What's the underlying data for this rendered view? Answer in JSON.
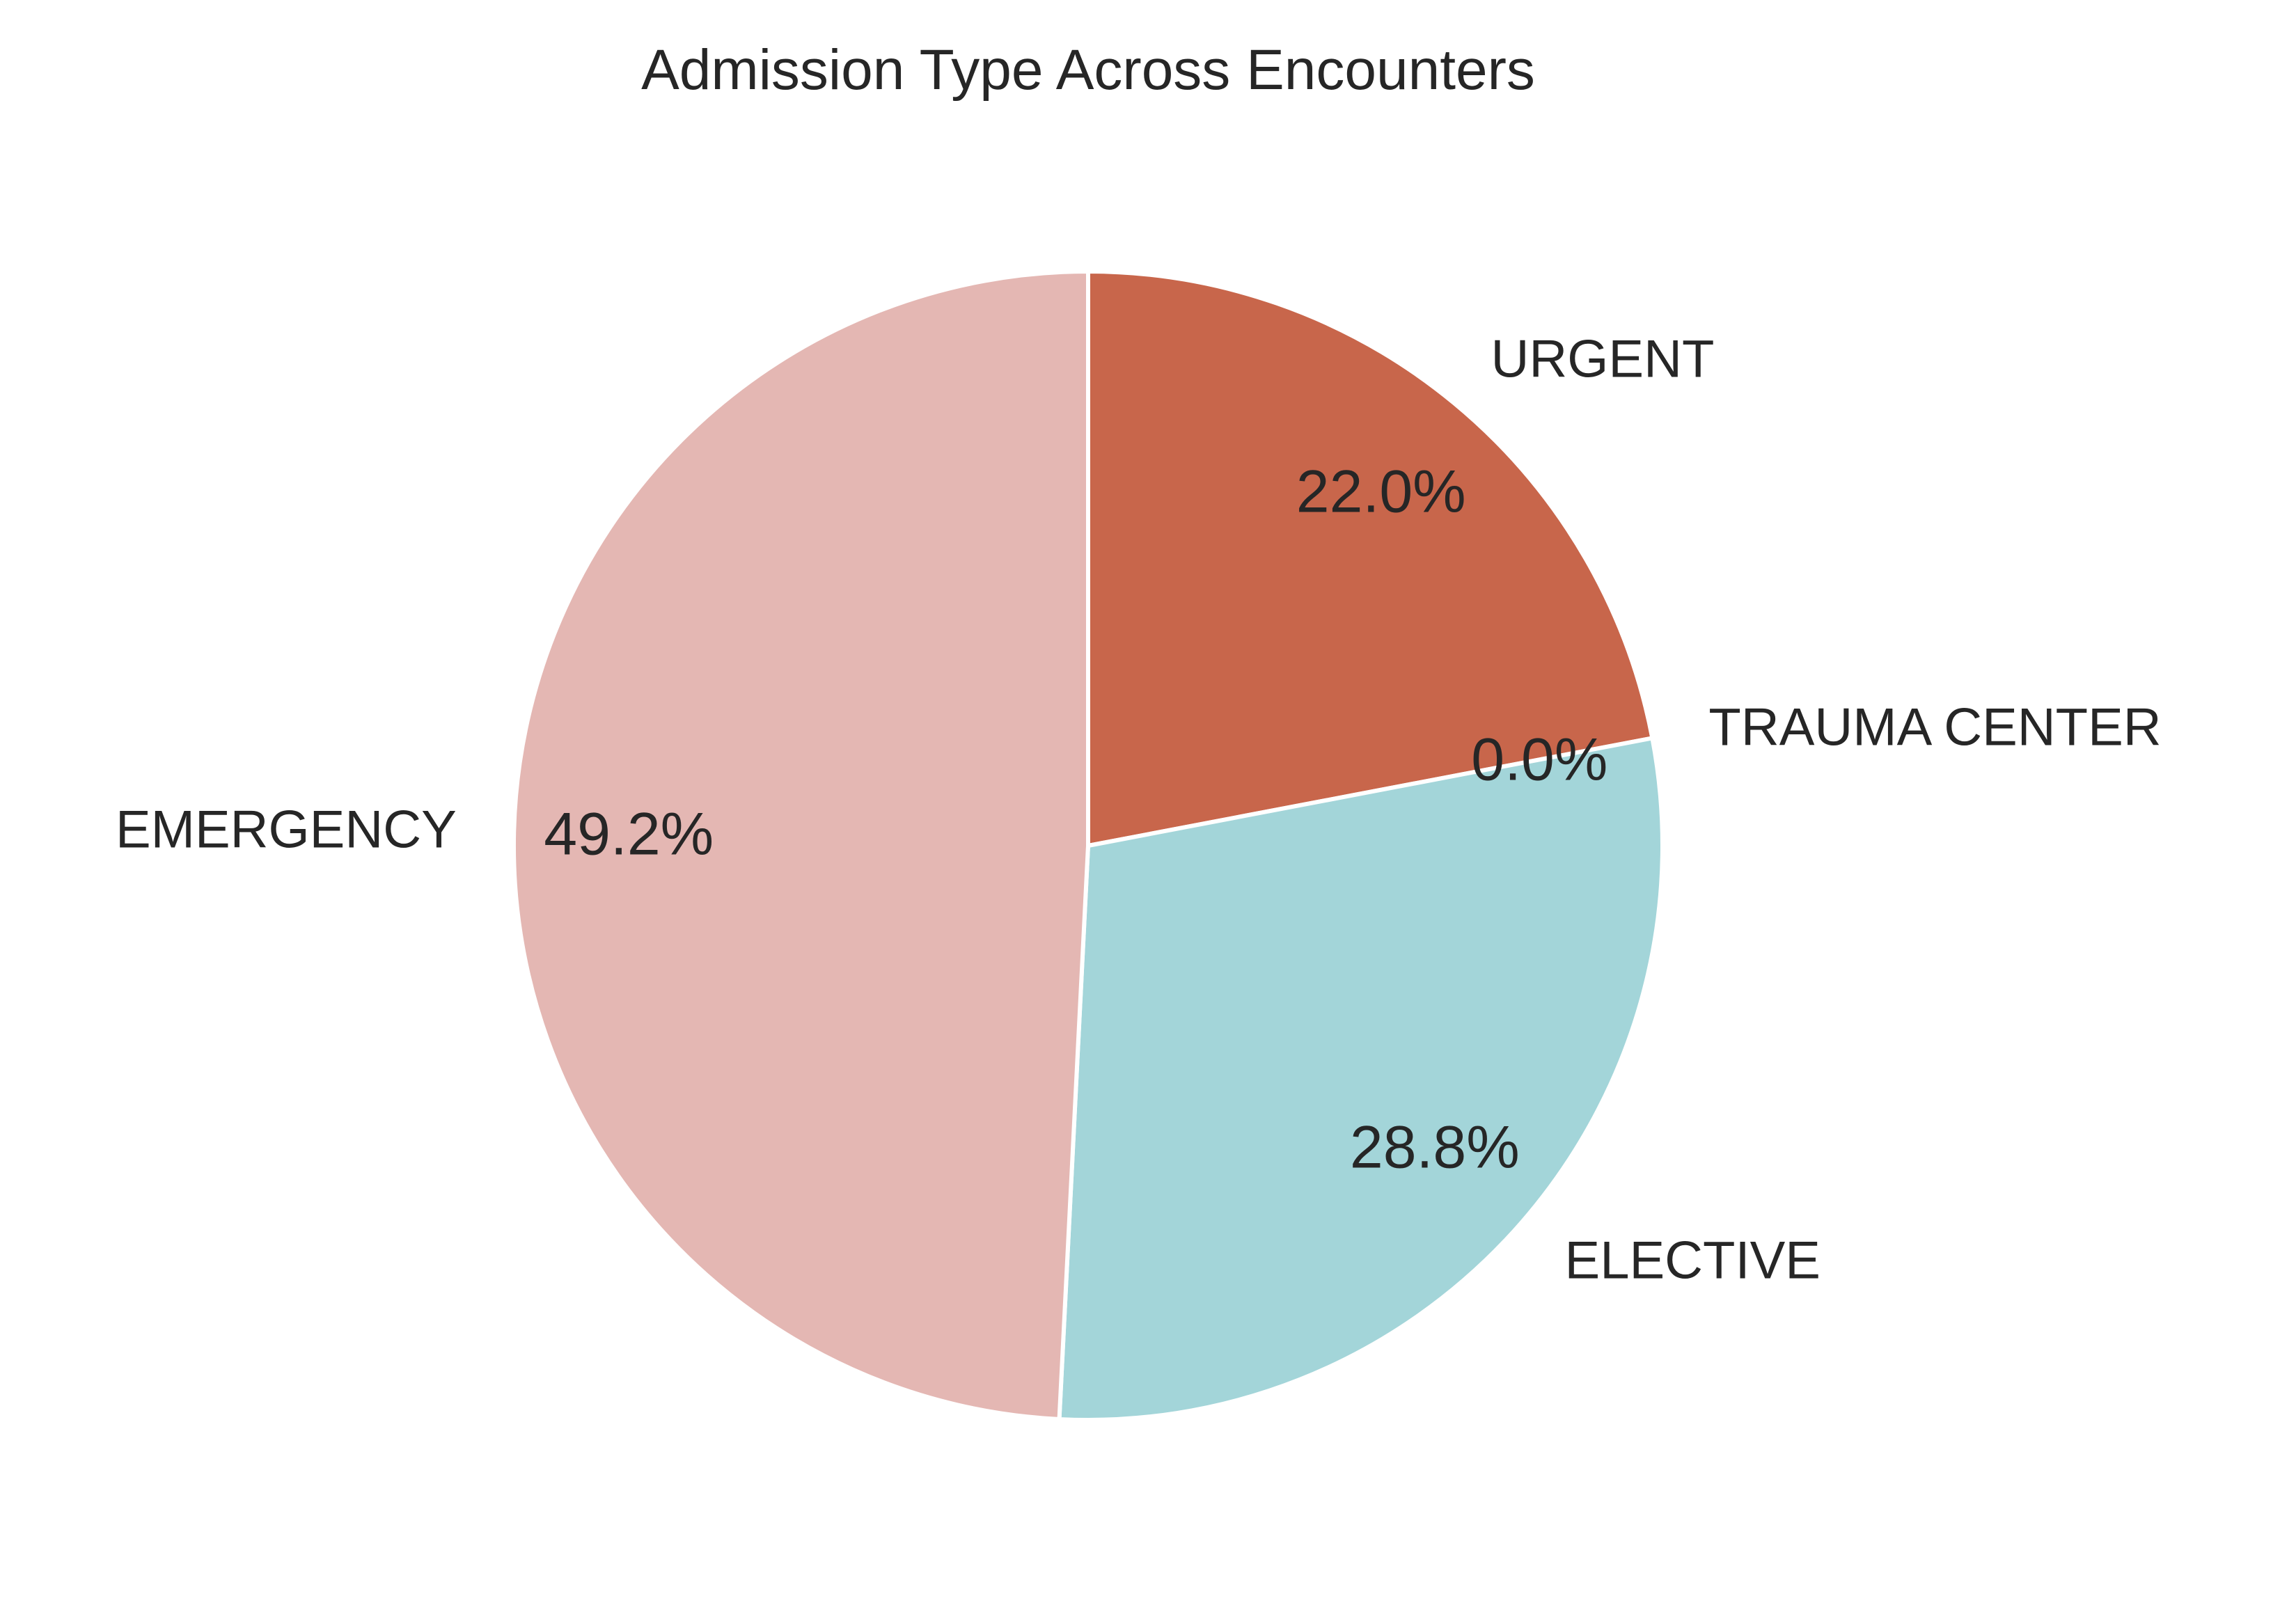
{
  "chart_data": {
    "type": "pie",
    "title": "Admission Type Across Encounters",
    "slices": [
      {
        "label": "URGENT",
        "value": 22.0,
        "pct_label": "22.0%",
        "color": "#c8664b"
      },
      {
        "label": "TRAUMA CENTER",
        "value": 0.0,
        "pct_label": "0.0%",
        "color": "#b8d8ca"
      },
      {
        "label": "ELECTIVE",
        "value": 28.8,
        "pct_label": "28.8%",
        "color": "#a3d5d9"
      },
      {
        "label": "EMERGENCY",
        "value": 49.2,
        "pct_label": "49.2%",
        "color": "#e4b7b3"
      }
    ],
    "start_angle": "top",
    "direction": "clockwise",
    "legend": "none"
  }
}
